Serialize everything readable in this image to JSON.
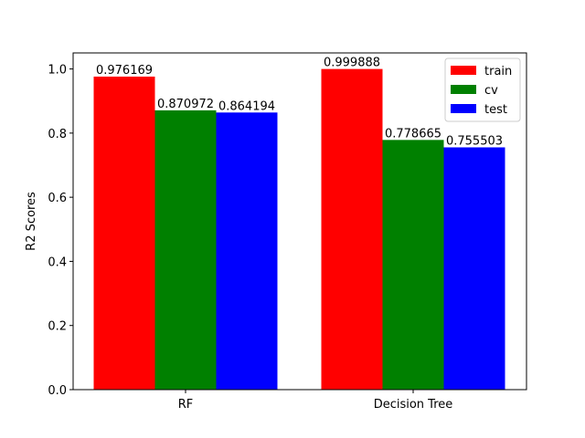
{
  "chart_data": {
    "type": "bar",
    "title": "",
    "xlabel": "",
    "ylabel": "R2 Scores",
    "categories": [
      "RF",
      "Decision Tree"
    ],
    "series": [
      {
        "name": "train",
        "color": "#ff0000",
        "values": [
          0.976169,
          0.999888
        ],
        "labels": [
          "0.976169",
          "0.999888"
        ]
      },
      {
        "name": "cv",
        "color": "#008000",
        "values": [
          0.870972,
          0.778665
        ],
        "labels": [
          "0.870972",
          "0.778665"
        ]
      },
      {
        "name": "test",
        "color": "#0000ff",
        "values": [
          0.864194,
          0.755503
        ],
        "labels": [
          "0.864194",
          "0.755503"
        ]
      }
    ],
    "ylim": [
      0,
      1.05
    ],
    "yticks": [
      0.0,
      0.2,
      0.4,
      0.6,
      0.8,
      1.0
    ],
    "ytick_labels": [
      "0.0",
      "0.2",
      "0.4",
      "0.6",
      "0.8",
      "1.0"
    ],
    "grid": false,
    "legend_position": "top-right"
  }
}
